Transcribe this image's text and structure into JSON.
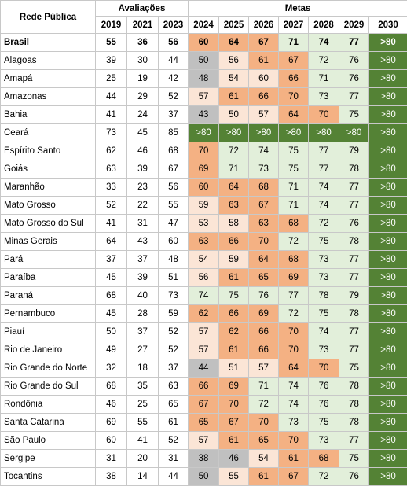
{
  "header": {
    "rede": "Rede Pública",
    "avaliacoes": "Avaliações",
    "metas": "Metas",
    "years": [
      "2019",
      "2021",
      "2023",
      "2024",
      "2025",
      "2026",
      "2027",
      "2028",
      "2029",
      "2030"
    ]
  },
  "colors": {
    "gray": "#c0c0c0",
    "light_orange": "#fbe5d6",
    "orange": "#f4b183",
    "light_green": "#e2efda",
    "dark_green": "#548235"
  },
  "rows": [
    {
      "state": "Brasil",
      "bold": true,
      "aval": [
        "55",
        "36",
        "56"
      ],
      "metas": [
        "60",
        "64",
        "67",
        "71",
        "74",
        "77",
        ">80"
      ],
      "colors": [
        "mid",
        "mid",
        "mid",
        "hi",
        "hi",
        "hi",
        "top"
      ]
    },
    {
      "state": "Alagoas",
      "aval": [
        "39",
        "30",
        "44"
      ],
      "metas": [
        "50",
        "56",
        "61",
        "67",
        "72",
        "76",
        ">80"
      ],
      "colors": [
        "gray",
        "lo",
        "mid",
        "mid",
        "hi",
        "hi",
        "top"
      ]
    },
    {
      "state": "Amapá",
      "aval": [
        "25",
        "19",
        "42"
      ],
      "metas": [
        "48",
        "54",
        "60",
        "66",
        "71",
        "76",
        ">80"
      ],
      "colors": [
        "gray",
        "lo",
        "lo",
        "mid",
        "hi",
        "hi",
        "top"
      ]
    },
    {
      "state": "Amazonas",
      "aval": [
        "44",
        "29",
        "52"
      ],
      "metas": [
        "57",
        "61",
        "66",
        "70",
        "73",
        "77",
        ">80"
      ],
      "colors": [
        "lo",
        "mid",
        "mid",
        "mid",
        "hi",
        "hi",
        "top"
      ]
    },
    {
      "state": "Bahia",
      "aval": [
        "41",
        "24",
        "37"
      ],
      "metas": [
        "43",
        "50",
        "57",
        "64",
        "70",
        "75",
        ">80"
      ],
      "colors": [
        "gray",
        "lo",
        "lo",
        "mid",
        "mid",
        "hi",
        "top"
      ]
    },
    {
      "state": "Ceará",
      "aval": [
        "73",
        "45",
        "85"
      ],
      "metas": [
        ">80",
        ">80",
        ">80",
        ">80",
        ">80",
        ">80",
        ">80"
      ],
      "colors": [
        "top",
        "top",
        "top",
        "top",
        "top",
        "top",
        "top"
      ]
    },
    {
      "state": "Espírito Santo",
      "aval": [
        "62",
        "46",
        "68"
      ],
      "metas": [
        "70",
        "72",
        "74",
        "75",
        "77",
        "79",
        ">80"
      ],
      "colors": [
        "mid",
        "hi",
        "hi",
        "hi",
        "hi",
        "hi",
        "top"
      ]
    },
    {
      "state": "Goiás",
      "aval": [
        "63",
        "39",
        "67"
      ],
      "metas": [
        "69",
        "71",
        "73",
        "75",
        "77",
        "78",
        ">80"
      ],
      "colors": [
        "mid",
        "hi",
        "hi",
        "hi",
        "hi",
        "hi",
        "top"
      ]
    },
    {
      "state": "Maranhão",
      "aval": [
        "33",
        "23",
        "56"
      ],
      "metas": [
        "60",
        "64",
        "68",
        "71",
        "74",
        "77",
        ">80"
      ],
      "colors": [
        "mid",
        "mid",
        "mid",
        "hi",
        "hi",
        "hi",
        "top"
      ]
    },
    {
      "state": "Mato Grosso",
      "aval": [
        "52",
        "22",
        "55"
      ],
      "metas": [
        "59",
        "63",
        "67",
        "71",
        "74",
        "77",
        ">80"
      ],
      "colors": [
        "lo",
        "mid",
        "mid",
        "hi",
        "hi",
        "hi",
        "top"
      ]
    },
    {
      "state": "Mato Grosso do Sul",
      "aval": [
        "41",
        "31",
        "47"
      ],
      "metas": [
        "53",
        "58",
        "63",
        "68",
        "72",
        "76",
        ">80"
      ],
      "colors": [
        "lo",
        "lo",
        "mid",
        "mid",
        "hi",
        "hi",
        "top"
      ]
    },
    {
      "state": "Minas Gerais",
      "aval": [
        "64",
        "43",
        "60"
      ],
      "metas": [
        "63",
        "66",
        "70",
        "72",
        "75",
        "78",
        ">80"
      ],
      "colors": [
        "mid",
        "mid",
        "mid",
        "hi",
        "hi",
        "hi",
        "top"
      ]
    },
    {
      "state": "Pará",
      "aval": [
        "37",
        "37",
        "48"
      ],
      "metas": [
        "54",
        "59",
        "64",
        "68",
        "73",
        "77",
        ">80"
      ],
      "colors": [
        "lo",
        "lo",
        "mid",
        "mid",
        "hi",
        "hi",
        "top"
      ]
    },
    {
      "state": "Paraíba",
      "aval": [
        "45",
        "39",
        "51"
      ],
      "metas": [
        "56",
        "61",
        "65",
        "69",
        "73",
        "77",
        ">80"
      ],
      "colors": [
        "lo",
        "mid",
        "mid",
        "mid",
        "hi",
        "hi",
        "top"
      ]
    },
    {
      "state": "Paraná",
      "aval": [
        "68",
        "40",
        "73"
      ],
      "metas": [
        "74",
        "75",
        "76",
        "77",
        "78",
        "79",
        ">80"
      ],
      "colors": [
        "hi",
        "hi",
        "hi",
        "hi",
        "hi",
        "hi",
        "top"
      ]
    },
    {
      "state": "Pernambuco",
      "aval": [
        "45",
        "28",
        "59"
      ],
      "metas": [
        "62",
        "66",
        "69",
        "72",
        "75",
        "78",
        ">80"
      ],
      "colors": [
        "mid",
        "mid",
        "mid",
        "hi",
        "hi",
        "hi",
        "top"
      ]
    },
    {
      "state": "Piauí",
      "aval": [
        "50",
        "37",
        "52"
      ],
      "metas": [
        "57",
        "62",
        "66",
        "70",
        "74",
        "77",
        ">80"
      ],
      "colors": [
        "lo",
        "mid",
        "mid",
        "mid",
        "hi",
        "hi",
        "top"
      ]
    },
    {
      "state": "Rio de Janeiro",
      "aval": [
        "49",
        "27",
        "52"
      ],
      "metas": [
        "57",
        "61",
        "66",
        "70",
        "73",
        "77",
        ">80"
      ],
      "colors": [
        "lo",
        "mid",
        "mid",
        "mid",
        "hi",
        "hi",
        "top"
      ]
    },
    {
      "state": "Rio Grande do Norte",
      "aval": [
        "32",
        "18",
        "37"
      ],
      "metas": [
        "44",
        "51",
        "57",
        "64",
        "70",
        "75",
        ">80"
      ],
      "colors": [
        "gray",
        "lo",
        "lo",
        "mid",
        "mid",
        "hi",
        "top"
      ]
    },
    {
      "state": "Rio Grande do Sul",
      "aval": [
        "68",
        "35",
        "63"
      ],
      "metas": [
        "66",
        "69",
        "71",
        "74",
        "76",
        "78",
        ">80"
      ],
      "colors": [
        "mid",
        "mid",
        "hi",
        "hi",
        "hi",
        "hi",
        "top"
      ]
    },
    {
      "state": "Rondônia",
      "aval": [
        "46",
        "25",
        "65"
      ],
      "metas": [
        "67",
        "70",
        "72",
        "74",
        "76",
        "78",
        ">80"
      ],
      "colors": [
        "mid",
        "mid",
        "hi",
        "hi",
        "hi",
        "hi",
        "top"
      ]
    },
    {
      "state": "Santa Catarina",
      "aval": [
        "69",
        "55",
        "61"
      ],
      "metas": [
        "65",
        "67",
        "70",
        "73",
        "75",
        "78",
        ">80"
      ],
      "colors": [
        "mid",
        "mid",
        "mid",
        "hi",
        "hi",
        "hi",
        "top"
      ]
    },
    {
      "state": "São Paulo",
      "aval": [
        "60",
        "41",
        "52"
      ],
      "metas": [
        "57",
        "61",
        "65",
        "70",
        "73",
        "77",
        ">80"
      ],
      "colors": [
        "lo",
        "mid",
        "mid",
        "mid",
        "hi",
        "hi",
        "top"
      ]
    },
    {
      "state": "Sergipe",
      "aval": [
        "31",
        "20",
        "31"
      ],
      "metas": [
        "38",
        "46",
        "54",
        "61",
        "68",
        "75",
        ">80"
      ],
      "colors": [
        "gray",
        "gray",
        "lo",
        "mid",
        "mid",
        "hi",
        "top"
      ]
    },
    {
      "state": "Tocantins",
      "aval": [
        "38",
        "14",
        "44"
      ],
      "metas": [
        "50",
        "55",
        "61",
        "67",
        "72",
        "76",
        ">80"
      ],
      "colors": [
        "gray",
        "lo",
        "mid",
        "mid",
        "hi",
        "hi",
        "top"
      ]
    }
  ]
}
